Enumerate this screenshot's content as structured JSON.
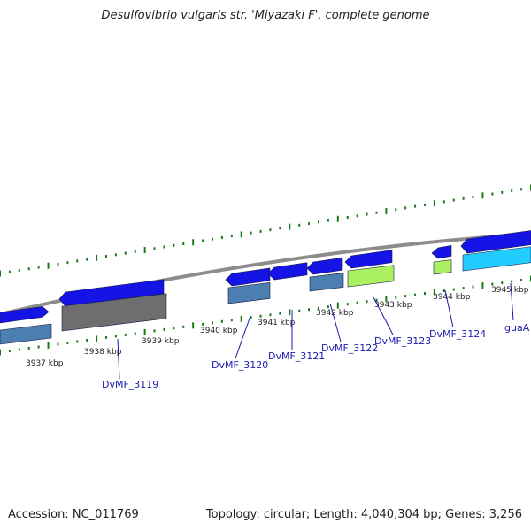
{
  "title": "Desulfovibrio vulgaris str. 'Miyazaki F', complete genome",
  "footer": {
    "accession": "Accession: NC_011769",
    "summary": "Topology: circular; Length: 4,040,304 bp; Genes: 3,256"
  },
  "colors": {
    "backbone": "#8c8c8c",
    "forward_gene": "#1414e6",
    "gene_label": "#1a1ab0",
    "tick": "#1a7a1a",
    "cds_steel": "#4a7fb0",
    "cds_gray": "#6e6e6e",
    "cds_lime": "#aaf060",
    "cds_cyan": "#22ccff"
  },
  "scale_labels": [
    "3937 kbp",
    "3938 kbp",
    "3939 kbp",
    "3940 kbp",
    "3941 kbp",
    "3942 kbp",
    "3943 kbp",
    "3944 kbp",
    "3945 kbp"
  ],
  "gene_labels": [
    "DvMF_3119",
    "DvMF_3120",
    "DvMF_3121",
    "DvMF_3122",
    "DvMF_3123",
    "DvMF_3124",
    "guaA"
  ]
}
